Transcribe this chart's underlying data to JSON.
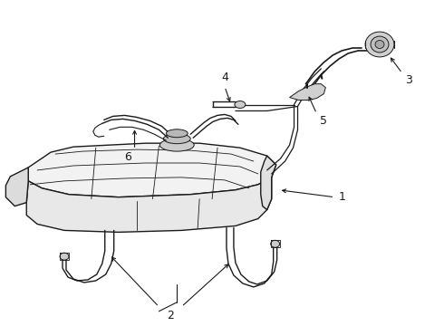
{
  "background_color": "#ffffff",
  "line_color": "#1a1a1a",
  "figsize": [
    4.9,
    3.6
  ],
  "dpi": 100,
  "label_fontsize": 9,
  "lw_main": 1.0,
  "lw_thin": 0.7,
  "lw_thick": 1.4
}
